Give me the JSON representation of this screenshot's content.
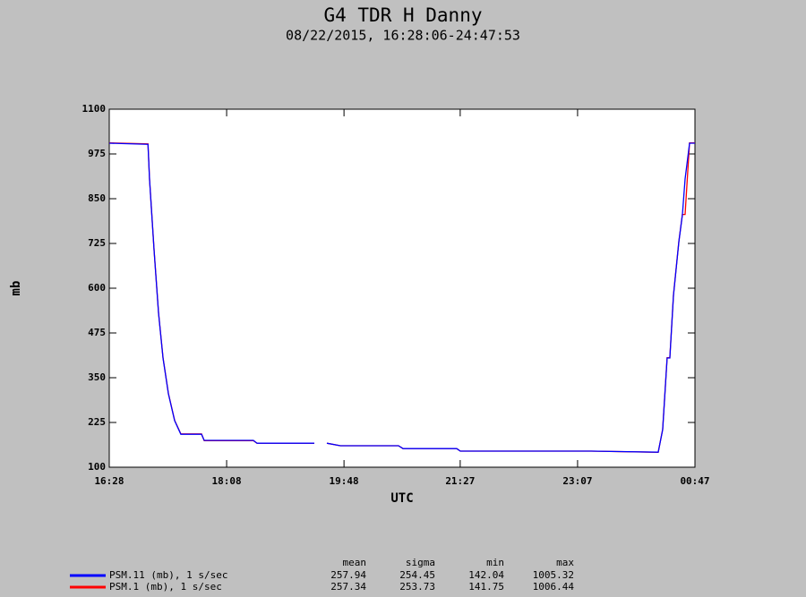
{
  "chart_data": {
    "type": "line",
    "title": "G4 TDR H Danny",
    "subtitle": "08/22/2015, 16:28:06-24:47:53",
    "x_label": "UTC",
    "y_label": "mb",
    "xlim": [
      988,
      1487
    ],
    "ylim": [
      100,
      1100
    ],
    "xticks": [
      {
        "value": 988,
        "label": "16:28"
      },
      {
        "value": 1088,
        "label": "18:08"
      },
      {
        "value": 1188,
        "label": "19:48"
      },
      {
        "value": 1287,
        "label": "21:27"
      },
      {
        "value": 1387,
        "label": "23:07"
      },
      {
        "value": 1487,
        "label": "00:47"
      }
    ],
    "yticks": [
      100,
      225,
      350,
      475,
      600,
      725,
      850,
      975,
      1100
    ],
    "x": [
      988,
      1021,
      1022.3,
      1026.2,
      1030,
      1033.8,
      1038.4,
      1043.7,
      1049,
      1066.6,
      1068.9,
      1110.8,
      1113.9,
      1162.7,
      1165.8,
      1173.4,
      1184.9,
      1234.4,
      1238.3,
      1284,
      1287.1,
      1398.5,
      1455.7,
      1459.5,
      1463.3,
      1465.6,
      1468.7,
      1473.3,
      1476.3,
      1478.6,
      1482.4,
      1487
    ],
    "series": [
      {
        "name": "PSM.11 (mb), 1 s/sec",
        "color": "#0000ff",
        "stats": [
          257.94,
          254.45,
          142.04,
          1005.32
        ],
        "values": [
          1005,
          1002,
          905,
          705,
          530,
          405,
          305,
          230,
          192,
          192,
          175,
          175,
          167,
          167,
          null,
          167,
          160,
          160,
          152,
          152,
          145,
          145,
          142,
          205,
          405,
          405,
          580,
          730,
          805,
          905,
          1005,
          1005
        ]
      },
      {
        "name": "PSM.1 (mb), 1 s/sec",
        "color": "#ff0000",
        "stats": [
          257.34,
          253.73,
          141.75,
          1006.44
        ],
        "values": [
          1006,
          1003,
          906,
          706,
          531,
          406,
          306,
          231,
          193,
          193,
          174,
          174,
          167,
          167,
          null,
          167,
          160,
          160,
          152,
          152,
          145,
          145,
          141.75,
          206,
          406,
          406,
          581,
          731,
          806,
          806,
          1006,
          1006
        ]
      }
    ],
    "stats_columns": [
      "mean",
      "sigma",
      "min",
      "max"
    ]
  }
}
